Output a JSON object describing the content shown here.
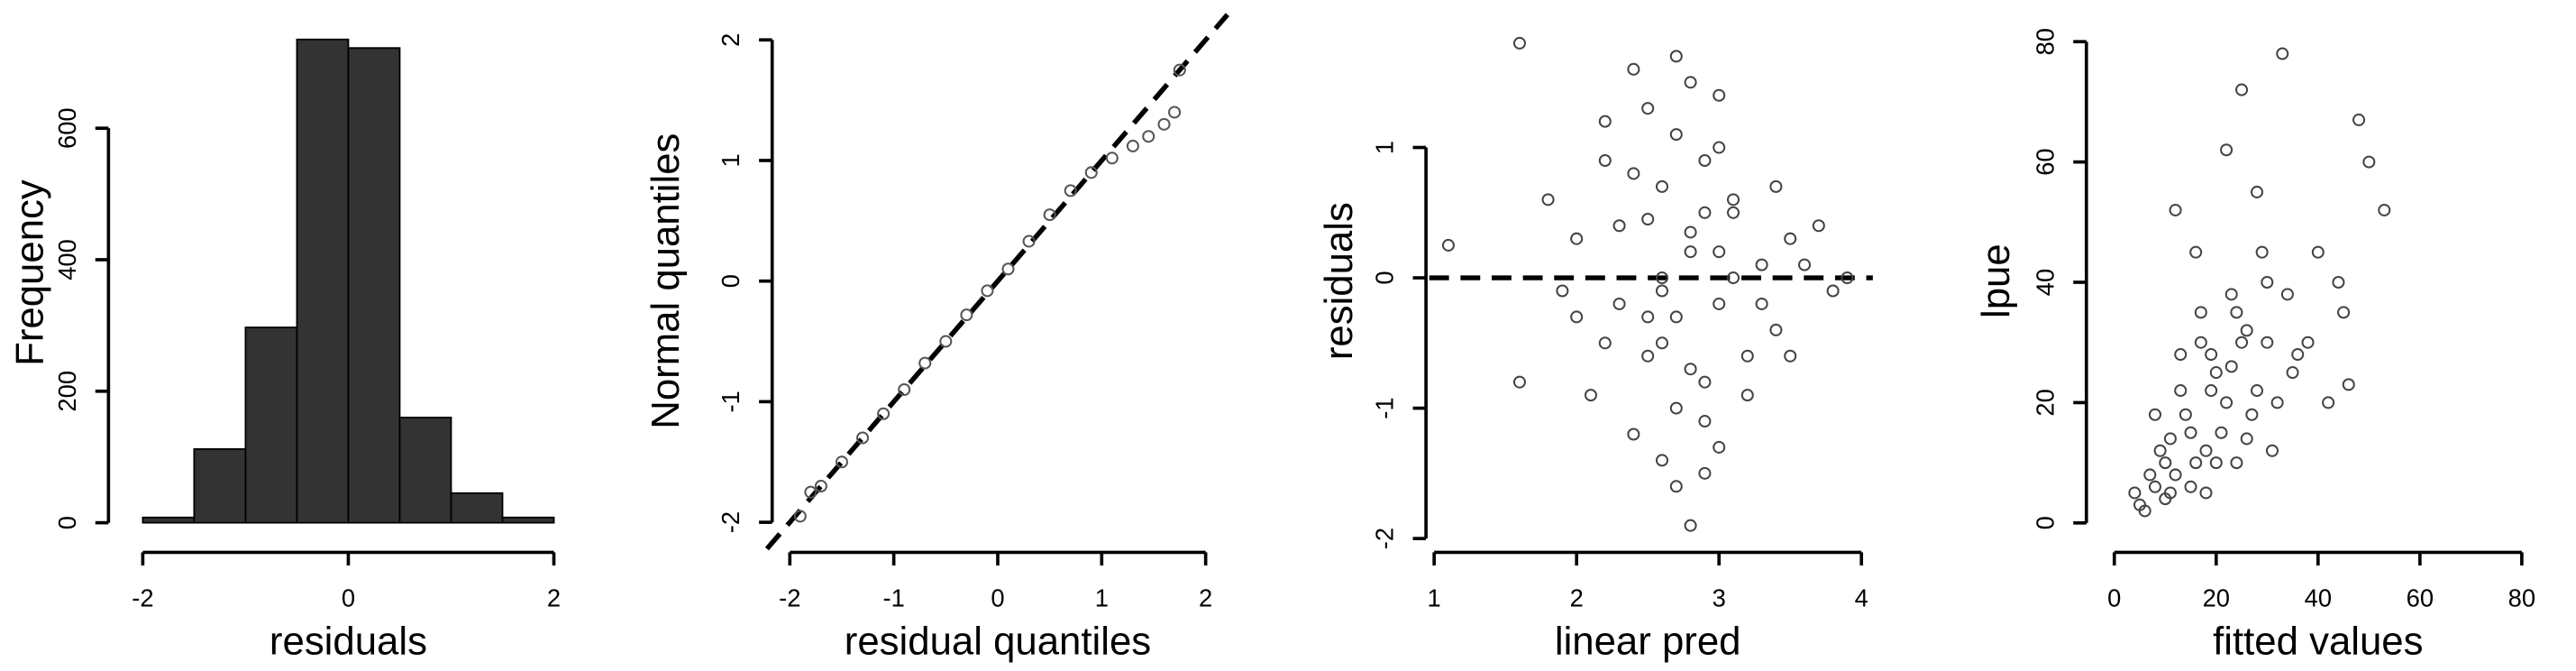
{
  "chart_data": [
    {
      "type": "histogram",
      "x_label": "residuals",
      "y_label": "Frequency",
      "bins": [
        -2,
        -1.5,
        -1,
        -0.5,
        0,
        0.5,
        1,
        1.5,
        2
      ],
      "values": [
        8,
        112,
        297,
        735,
        722,
        160,
        45,
        8
      ],
      "color": "#333333",
      "xlim": [
        -2.11,
        2.11
      ],
      "ylim": [
        0,
        760
      ],
      "xticks": [
        -2,
        0,
        2
      ],
      "yticks": [
        0,
        200,
        400,
        600
      ]
    },
    {
      "type": "scatter",
      "x_label": "residual quantiles",
      "y_label": "Normal quantiles",
      "x": [
        -1.9,
        -1.8,
        -1.7,
        -1.5,
        -1.3,
        -1.1,
        -0.9,
        -0.7,
        -0.5,
        -0.3,
        -0.1,
        0.1,
        0.3,
        0.5,
        0.7,
        0.9,
        1.1,
        1.3,
        1.45,
        1.6,
        1.7,
        1.75
      ],
      "values": [
        -1.95,
        -1.75,
        -1.7,
        -1.5,
        -1.3,
        -1.1,
        -0.9,
        -0.68,
        -0.5,
        -0.28,
        -0.08,
        0.1,
        0.33,
        0.55,
        0.75,
        0.9,
        1.02,
        1.12,
        1.2,
        1.3,
        1.4,
        1.75
      ],
      "color": "#555555",
      "abline": [
        0,
        1
      ],
      "xlim": [
        -2.17,
        2.16
      ],
      "ylim": [
        -2.14,
        2.14
      ],
      "xticks": [
        -2,
        -1,
        0,
        1,
        2
      ],
      "yticks": [
        -2,
        -1,
        0,
        1,
        2
      ]
    },
    {
      "type": "scatter",
      "x_label": "linear pred",
      "y_label": "residuals",
      "x": [
        2.8,
        2.5,
        3.1,
        2.9,
        2.7,
        3.3,
        2.2,
        2.6,
        3.0,
        2.4,
        3.5,
        2.8,
        1.9,
        3.2,
        2.6,
        2.9,
        3.4,
        2.3,
        2.7,
        3.0,
        2.1,
        3.6,
        2.5,
        2.8,
        3.1,
        2.0,
        2.9,
        3.3,
        2.4,
        2.7,
        1.6,
        3.8,
        2.6,
        3.0,
        2.2,
        2.9,
        3.2,
        2.5,
        1.1,
        2.8,
        3.7,
        2.3,
        3.0,
        2.6,
        1.8,
        3.4,
        2.7,
        2.9,
        2.0,
        3.1,
        1.6,
        2.4,
        3.5,
        2.8,
        2.2,
        3.9,
        2.6,
        3.0,
        2.5,
        2.7
      ],
      "values": [
        0.2,
        -0.3,
        0.5,
        -0.8,
        1.1,
        0.1,
        -0.5,
        0.7,
        -0.2,
        -1.2,
        0.3,
        1.5,
        -0.1,
        -0.6,
        0.0,
        0.9,
        -0.4,
        0.4,
        -1.6,
        1.0,
        -0.9,
        0.1,
        1.3,
        -0.7,
        0.6,
        0.3,
        -1.1,
        -0.2,
        0.8,
        -0.3,
        1.8,
        -0.1,
        -1.4,
        0.2,
        1.2,
        0.5,
        -0.9,
        -0.6,
        0.25,
        -1.9,
        0.4,
        -0.2,
        1.4,
        -0.5,
        0.6,
        0.7,
        -1.0,
        -1.5,
        -0.3,
        0.0,
        -0.8,
        1.6,
        -0.6,
        0.35,
        0.9,
        0.0,
        -0.1,
        -1.3,
        0.45,
        1.7
      ],
      "color": "#444444",
      "hline": 0,
      "xlim": [
        1.035,
        4.08
      ],
      "ylim": [
        -2.005,
        1.955
      ],
      "xticks": [
        1,
        2,
        3,
        4
      ],
      "yticks": [
        -2,
        -1,
        0,
        1
      ]
    },
    {
      "type": "scatter",
      "x_label": "fitted values",
      "y_label": "lpue",
      "x": [
        5,
        8,
        10,
        12,
        15,
        18,
        20,
        22,
        25,
        28,
        6,
        9,
        11,
        14,
        16,
        19,
        21,
        24,
        27,
        30,
        7,
        10,
        13,
        15,
        17,
        20,
        23,
        26,
        29,
        32,
        33,
        35,
        38,
        40,
        42,
        45,
        48,
        50,
        53,
        4,
        12,
        16,
        18,
        22,
        25,
        28,
        31,
        36,
        44,
        24,
        8,
        13,
        17,
        19,
        23,
        26,
        30,
        34,
        46,
        11
      ],
      "values": [
        3,
        6,
        10,
        8,
        15,
        12,
        25,
        20,
        30,
        22,
        2,
        12,
        5,
        18,
        10,
        28,
        15,
        35,
        18,
        40,
        8,
        4,
        22,
        6,
        30,
        10,
        38,
        14,
        45,
        20,
        78,
        25,
        30,
        45,
        20,
        35,
        67,
        60,
        52,
        5,
        52,
        45,
        5,
        62,
        72,
        55,
        12,
        28,
        40,
        10,
        18,
        28,
        35,
        22,
        26,
        32,
        30,
        38,
        23,
        14
      ],
      "color": "#444444",
      "xlim": [
        -2.9,
        81.6
      ],
      "ylim": [
        -2.7,
        83.1
      ],
      "xticks": [
        0,
        20,
        40,
        60,
        80
      ],
      "yticks": [
        0,
        20,
        40,
        60,
        80
      ]
    }
  ]
}
